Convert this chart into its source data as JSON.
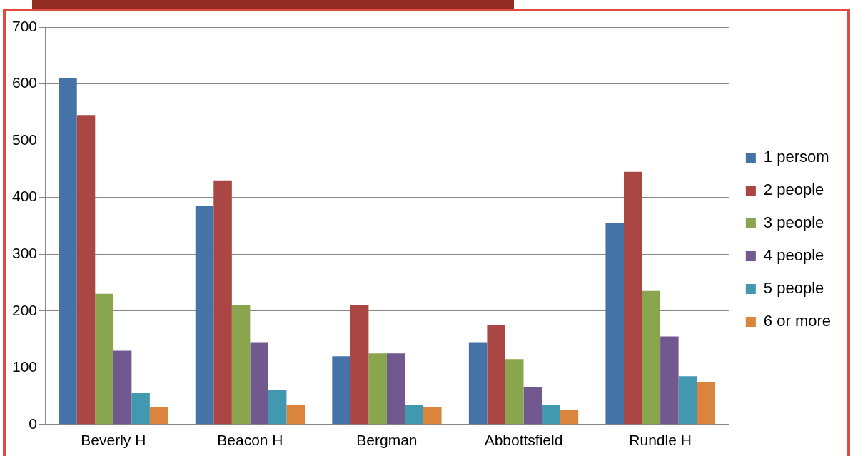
{
  "chart_data": {
    "type": "bar",
    "categories": [
      "Beverly H",
      "Beacon H",
      "Bergman",
      "Abbottsfield",
      "Rundle H"
    ],
    "series": [
      {
        "name": "1 persom",
        "color": "#4572a7",
        "values": [
          610,
          385,
          120,
          145,
          355
        ]
      },
      {
        "name": "2 people",
        "color": "#aa4643",
        "values": [
          545,
          430,
          210,
          175,
          445
        ]
      },
      {
        "name": "3 people",
        "color": "#89a54e",
        "values": [
          230,
          210,
          125,
          115,
          235
        ]
      },
      {
        "name": "4 people",
        "color": "#71588f",
        "values": [
          130,
          145,
          125,
          65,
          155
        ]
      },
      {
        "name": "5 people",
        "color": "#4198af",
        "values": [
          55,
          60,
          35,
          35,
          85
        ]
      },
      {
        "name": "6 or more",
        "color": "#db843d",
        "values": [
          30,
          35,
          30,
          25,
          75
        ]
      }
    ],
    "ylim": [
      0,
      700
    ],
    "yticks": [
      0,
      100,
      200,
      300,
      400,
      500,
      600,
      700
    ],
    "grid": "y",
    "legend": "right"
  }
}
